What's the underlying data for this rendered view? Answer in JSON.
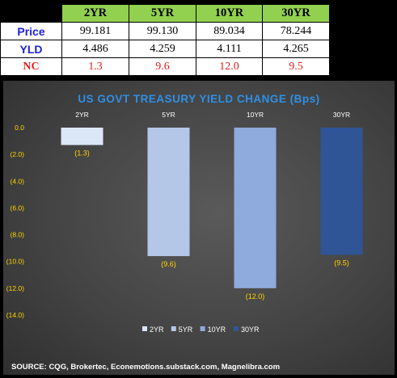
{
  "table": {
    "columns": [
      "2YR",
      "5YR",
      "10YR",
      "30YR"
    ],
    "rows": [
      {
        "label": "Price",
        "label_color": "#1f1fdc",
        "values": [
          "99.181",
          "99.130",
          "89.034",
          "78.244"
        ]
      },
      {
        "label": "YLD",
        "label_color": "#1f1fdc",
        "values": [
          "4.486",
          "4.259",
          "4.111",
          "4.265"
        ]
      },
      {
        "label": "NC",
        "label_color": "#e41e1e",
        "values": [
          "1.3",
          "9.6",
          "12.0",
          "9.5"
        ]
      }
    ]
  },
  "chart_data": {
    "type": "bar",
    "title": "US GOVT TREASURY YIELD CHANGE (Bps)",
    "categories": [
      "2YR",
      "5YR",
      "10YR",
      "30YR"
    ],
    "values": [
      -1.3,
      -9.6,
      -12.0,
      -9.5
    ],
    "data_labels": [
      "(1.3)",
      "(9.6)",
      "(12.0)",
      "(9.5)"
    ],
    "colors": [
      "#dbe6f7",
      "#b4c7e7",
      "#8faadc",
      "#2f5597"
    ],
    "ylim": [
      -14,
      0
    ],
    "yticks": [
      0,
      -2,
      -4,
      -6,
      -8,
      -10,
      -12,
      -14
    ],
    "ytick_labels": [
      "0.0",
      "(2.0)",
      "(4.0)",
      "(6.0)",
      "(8.0)",
      "(10.0)",
      "(12.0)",
      "(14.0)"
    ],
    "legend": [
      "2YR",
      "5YR",
      "10YR",
      "30YR"
    ],
    "legend_position": "bottom",
    "grid": false,
    "source": "SOURCE: CQG, Brokertec, Econemotions.substack.com, Magnelibra.com"
  }
}
